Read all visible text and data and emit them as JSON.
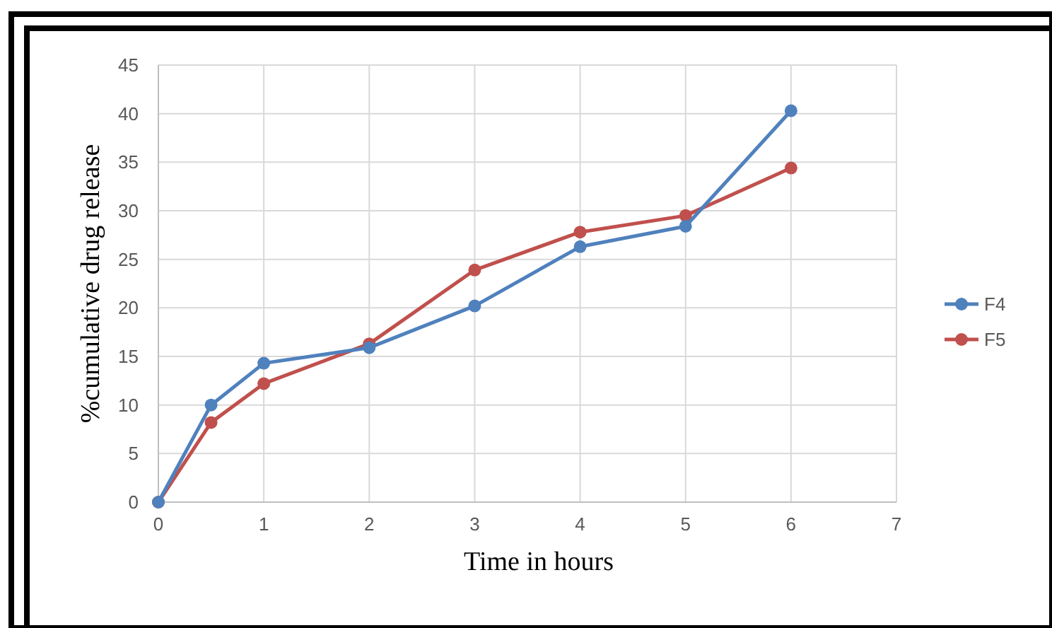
{
  "chart_data": {
    "type": "line",
    "xlabel": "Time in hours",
    "ylabel": "%cumulative drug release",
    "x": [
      0,
      0.5,
      1,
      2,
      3,
      4,
      5,
      6
    ],
    "series": [
      {
        "name": "F4",
        "color": "#4f81bd",
        "values": [
          0,
          10,
          14.3,
          15.9,
          20.2,
          26.3,
          28.4,
          40.3
        ]
      },
      {
        "name": "F5",
        "color": "#c0504d",
        "values": [
          0,
          8.2,
          12.2,
          16.3,
          23.9,
          27.8,
          29.5,
          34.4
        ]
      }
    ],
    "xlim": [
      0,
      7
    ],
    "xticks": [
      0,
      1,
      2,
      3,
      4,
      5,
      6,
      7
    ],
    "ylim": [
      0,
      45
    ],
    "yticks": [
      0,
      5,
      10,
      15,
      20,
      25,
      30,
      35,
      40,
      45
    ],
    "grid": true,
    "legend": "right",
    "marker": "circle",
    "line_style": "solid"
  }
}
